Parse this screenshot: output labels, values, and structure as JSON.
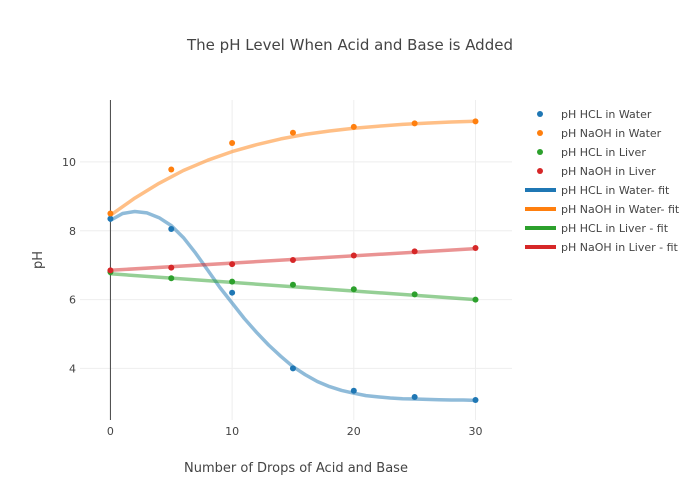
{
  "chart_data": {
    "type": "scatter",
    "title": "The pH Level When Acid and Base is Added",
    "xlabel": "Number of Drops of Acid and Base",
    "ylabel": "pH",
    "xlim": [
      -2.5,
      33
    ],
    "ylim": [
      2.5,
      11.8
    ],
    "xticks": [
      0,
      10,
      20,
      30
    ],
    "yticks": [
      4,
      6,
      8,
      10
    ],
    "grid": true,
    "legend_position": "right",
    "x": [
      0,
      5,
      10,
      15,
      20,
      25,
      30
    ],
    "series": [
      {
        "name": "pH HCL in Water",
        "kind": "markers",
        "color": "#1f77b4",
        "values": [
          8.35,
          8.05,
          6.2,
          4.0,
          3.35,
          3.17,
          3.08
        ]
      },
      {
        "name": "pH NaOH in Water",
        "kind": "markers",
        "color": "#ff7f0e",
        "values": [
          8.5,
          9.78,
          10.55,
          10.85,
          11.02,
          11.12,
          11.18
        ]
      },
      {
        "name": "pH HCL in Liver",
        "kind": "markers",
        "color": "#2ca02c",
        "values": [
          6.8,
          6.62,
          6.52,
          6.43,
          6.3,
          6.15,
          6.0
        ]
      },
      {
        "name": "pH NaOH in Liver",
        "kind": "markers",
        "color": "#d62728",
        "values": [
          6.85,
          6.93,
          7.03,
          7.15,
          7.28,
          7.4,
          7.5
        ]
      },
      {
        "name": "pH HCL in Water- fit",
        "kind": "line",
        "color": "#1f77b4",
        "x": [
          0,
          1,
          2,
          3,
          4,
          5,
          6,
          7,
          8,
          9,
          10,
          11,
          12,
          13,
          14,
          15,
          16,
          17,
          18,
          19,
          20,
          21,
          22,
          23,
          24,
          25,
          26,
          27,
          28,
          29,
          30
        ],
        "values": [
          8.3,
          8.5,
          8.56,
          8.52,
          8.38,
          8.15,
          7.8,
          7.35,
          6.85,
          6.35,
          5.9,
          5.45,
          5.05,
          4.68,
          4.35,
          4.05,
          3.82,
          3.62,
          3.47,
          3.36,
          3.28,
          3.21,
          3.17,
          3.14,
          3.12,
          3.11,
          3.1,
          3.09,
          3.08,
          3.08,
          3.07
        ]
      },
      {
        "name": "pH NaOH in Water- fit",
        "kind": "line",
        "color": "#ff7f0e",
        "x": [
          0,
          2,
          4,
          6,
          8,
          10,
          12,
          14,
          16,
          18,
          20,
          22,
          24,
          26,
          28,
          30
        ],
        "values": [
          8.45,
          8.95,
          9.38,
          9.75,
          10.05,
          10.3,
          10.5,
          10.67,
          10.8,
          10.9,
          10.98,
          11.04,
          11.09,
          11.13,
          11.16,
          11.18
        ]
      },
      {
        "name": "pH HCL in Liver - fit",
        "kind": "line",
        "color": "#2ca02c",
        "x": [
          0,
          30
        ],
        "values": [
          6.75,
          6.0
        ]
      },
      {
        "name": "pH NaOH in Liver - fit",
        "kind": "line",
        "color": "#d62728",
        "x": [
          0,
          30
        ],
        "values": [
          6.85,
          7.48
        ]
      }
    ]
  }
}
